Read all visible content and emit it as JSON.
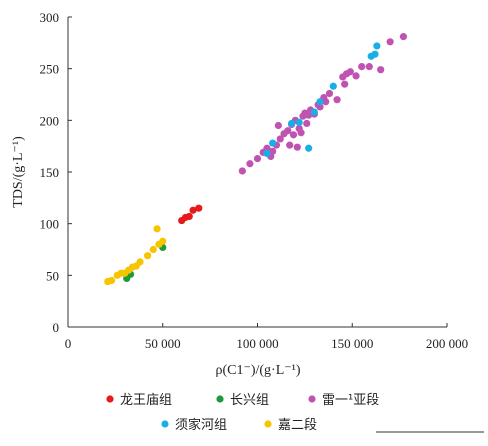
{
  "chart_data": {
    "type": "scatter",
    "title": "",
    "xlabel": "ρ(C1⁻)/(g·L⁻¹)",
    "ylabel": "TDS/(g·L⁻¹)",
    "xlim": [
      0,
      200000
    ],
    "ylim": [
      0,
      300
    ],
    "x_ticks": [
      0,
      50000,
      100000,
      150000,
      200000
    ],
    "x_tick_labels": [
      "0",
      "50 000",
      "100 000",
      "150 000",
      "200 000"
    ],
    "y_ticks": [
      0,
      50,
      100,
      150,
      200,
      250,
      300
    ],
    "y_tick_labels": [
      "0",
      "50",
      "100",
      "150",
      "200",
      "250",
      "300"
    ],
    "grid": false,
    "legend_position": "bottom",
    "series": [
      {
        "name": "龙王庙组",
        "color": "#e8191b",
        "points": [
          [
            60000,
            103
          ],
          [
            62000,
            106
          ],
          [
            64000,
            107
          ],
          [
            66000,
            113
          ],
          [
            69000,
            115
          ]
        ]
      },
      {
        "name": "长兴组",
        "color": "#1f9a3a",
        "points": [
          [
            31000,
            47
          ],
          [
            33000,
            51
          ],
          [
            50000,
            77
          ]
        ]
      },
      {
        "name": "雷一¹亚段",
        "color": "#c053b1",
        "points": [
          [
            92000,
            151
          ],
          [
            96000,
            158
          ],
          [
            100000,
            163
          ],
          [
            103000,
            169
          ],
          [
            105000,
            173
          ],
          [
            107000,
            165
          ],
          [
            108000,
            170
          ],
          [
            110000,
            176
          ],
          [
            111000,
            195
          ],
          [
            112000,
            182
          ],
          [
            114000,
            187
          ],
          [
            116000,
            190
          ],
          [
            117000,
            176
          ],
          [
            118000,
            196
          ],
          [
            119000,
            186
          ],
          [
            120000,
            200
          ],
          [
            121000,
            174
          ],
          [
            122000,
            192
          ],
          [
            123000,
            188
          ],
          [
            124000,
            204
          ],
          [
            125000,
            207
          ],
          [
            126000,
            197
          ],
          [
            127000,
            205
          ],
          [
            128000,
            210
          ],
          [
            130000,
            206
          ],
          [
            132000,
            215
          ],
          [
            133000,
            213
          ],
          [
            135000,
            222
          ],
          [
            136000,
            218
          ],
          [
            138000,
            226
          ],
          [
            142000,
            220
          ],
          [
            145000,
            242
          ],
          [
            146000,
            235
          ],
          [
            147000,
            245
          ],
          [
            149000,
            247
          ],
          [
            152000,
            243
          ],
          [
            155000,
            252
          ],
          [
            159000,
            252
          ],
          [
            165000,
            249
          ],
          [
            170000,
            276
          ],
          [
            177000,
            281
          ]
        ]
      },
      {
        "name": "须家河组",
        "color": "#1aaee6",
        "points": [
          [
            105000,
            168
          ],
          [
            108000,
            178
          ],
          [
            118000,
            197
          ],
          [
            122000,
            198
          ],
          [
            127000,
            173
          ],
          [
            130000,
            208
          ],
          [
            133000,
            218
          ],
          [
            140000,
            233
          ],
          [
            160000,
            262
          ],
          [
            162000,
            264
          ],
          [
            163000,
            272
          ]
        ]
      },
      {
        "name": "嘉二段",
        "color": "#f7c400",
        "points": [
          [
            21000,
            44
          ],
          [
            23000,
            45
          ],
          [
            26000,
            50
          ],
          [
            28000,
            52
          ],
          [
            30000,
            52
          ],
          [
            32000,
            55
          ],
          [
            34000,
            58
          ],
          [
            36000,
            59
          ],
          [
            38000,
            63
          ],
          [
            42000,
            69
          ],
          [
            45000,
            75
          ],
          [
            48000,
            80
          ],
          [
            50000,
            83
          ],
          [
            47000,
            95
          ]
        ]
      }
    ]
  }
}
